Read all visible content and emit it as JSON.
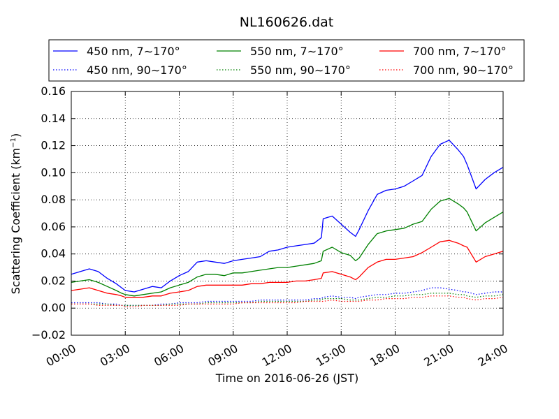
{
  "chart_data": {
    "type": "line",
    "title": "NL160626.dat",
    "xlabel": "Time on 2016-06-26 (JST)",
    "ylabel": "Scattering Coefficient (km",
    "ylabel_sup": "−1",
    "ylabel_end": ")",
    "xlim": [
      0,
      24
    ],
    "ylim": [
      -0.02,
      0.16
    ],
    "x_tick_values": [
      0,
      3,
      6,
      9,
      12,
      15,
      18,
      21,
      24
    ],
    "x_tick_labels": [
      "00:00",
      "03:00",
      "06:00",
      "09:00",
      "12:00",
      "15:00",
      "18:00",
      "21:00",
      "24:00"
    ],
    "y_tick_values": [
      -0.02,
      0.0,
      0.02,
      0.04,
      0.06,
      0.08,
      0.1,
      0.12,
      0.14,
      0.16
    ],
    "y_tick_labels": [
      "−0.02",
      "0.00",
      "0.02",
      "0.04",
      "0.06",
      "0.08",
      "0.10",
      "0.12",
      "0.14",
      "0.16"
    ],
    "grid": true,
    "legend_position": "top (above plot)",
    "x": [
      0,
      0.5,
      1,
      1.5,
      2,
      2.5,
      2.8,
      3,
      3.5,
      4,
      4.5,
      5,
      5.5,
      6,
      6.5,
      7,
      7.5,
      8,
      8.5,
      9,
      9.5,
      10,
      10.5,
      11,
      11.5,
      12,
      12.5,
      13,
      13.5,
      13.9,
      14,
      14.5,
      15,
      15.5,
      15.8,
      16,
      16.5,
      17,
      17.5,
      18,
      18.5,
      19,
      19.5,
      20,
      20.5,
      21,
      21.5,
      21.8,
      22,
      22.5,
      23,
      23.5,
      24
    ],
    "series": [
      {
        "name": "450 nm, 7∼170°",
        "color": "#0000ff",
        "style": "solid",
        "values": [
          0.025,
          0.027,
          0.029,
          0.027,
          0.022,
          0.018,
          0.015,
          0.013,
          0.012,
          0.014,
          0.016,
          0.015,
          0.02,
          0.024,
          0.027,
          0.034,
          0.035,
          0.034,
          0.033,
          0.035,
          0.036,
          0.037,
          0.038,
          0.042,
          0.043,
          0.045,
          0.046,
          0.047,
          0.048,
          0.052,
          0.066,
          0.068,
          0.062,
          0.056,
          0.053,
          0.058,
          0.072,
          0.084,
          0.087,
          0.088,
          0.09,
          0.094,
          0.098,
          0.112,
          0.121,
          0.124,
          0.117,
          0.112,
          0.106,
          0.088,
          0.095,
          0.1,
          0.104
        ]
      },
      {
        "name": "550 nm, 7∼170°",
        "color": "#008000",
        "style": "solid",
        "values": [
          0.019,
          0.02,
          0.021,
          0.019,
          0.016,
          0.013,
          0.011,
          0.01,
          0.009,
          0.01,
          0.011,
          0.012,
          0.015,
          0.017,
          0.019,
          0.023,
          0.025,
          0.025,
          0.024,
          0.026,
          0.026,
          0.027,
          0.028,
          0.029,
          0.03,
          0.03,
          0.031,
          0.032,
          0.033,
          0.035,
          0.042,
          0.045,
          0.041,
          0.039,
          0.035,
          0.037,
          0.047,
          0.055,
          0.057,
          0.058,
          0.059,
          0.062,
          0.064,
          0.073,
          0.079,
          0.081,
          0.077,
          0.074,
          0.071,
          0.057,
          0.063,
          0.067,
          0.071
        ]
      },
      {
        "name": "700 nm, 7∼170°",
        "color": "#ff0000",
        "style": "solid",
        "values": [
          0.013,
          0.014,
          0.015,
          0.013,
          0.011,
          0.01,
          0.009,
          0.008,
          0.008,
          0.008,
          0.009,
          0.009,
          0.011,
          0.012,
          0.013,
          0.016,
          0.017,
          0.017,
          0.017,
          0.017,
          0.017,
          0.018,
          0.018,
          0.019,
          0.019,
          0.019,
          0.02,
          0.02,
          0.021,
          0.022,
          0.026,
          0.027,
          0.025,
          0.023,
          0.021,
          0.023,
          0.03,
          0.034,
          0.036,
          0.036,
          0.037,
          0.038,
          0.041,
          0.045,
          0.049,
          0.05,
          0.048,
          0.046,
          0.045,
          0.034,
          0.038,
          0.04,
          0.042
        ]
      },
      {
        "name": "450 nm, 90∼170°",
        "color": "#0000ff",
        "style": "dotted",
        "values": [
          0.004,
          0.004,
          0.004,
          0.004,
          0.003,
          0.003,
          0.002,
          0.002,
          0.002,
          0.002,
          0.002,
          0.003,
          0.003,
          0.004,
          0.004,
          0.004,
          0.005,
          0.005,
          0.005,
          0.005,
          0.005,
          0.005,
          0.006,
          0.006,
          0.006,
          0.006,
          0.006,
          0.006,
          0.007,
          0.007,
          0.008,
          0.009,
          0.008,
          0.008,
          0.007,
          0.008,
          0.009,
          0.01,
          0.01,
          0.011,
          0.011,
          0.012,
          0.013,
          0.015,
          0.015,
          0.014,
          0.013,
          0.012,
          0.012,
          0.01,
          0.011,
          0.012,
          0.012
        ]
      },
      {
        "name": "550 nm, 90∼170°",
        "color": "#008000",
        "style": "dotted",
        "values": [
          0.003,
          0.003,
          0.003,
          0.003,
          0.003,
          0.002,
          0.002,
          0.002,
          0.002,
          0.002,
          0.002,
          0.002,
          0.003,
          0.003,
          0.003,
          0.003,
          0.004,
          0.004,
          0.004,
          0.004,
          0.004,
          0.004,
          0.005,
          0.005,
          0.005,
          0.005,
          0.005,
          0.005,
          0.006,
          0.006,
          0.007,
          0.007,
          0.007,
          0.006,
          0.006,
          0.006,
          0.007,
          0.008,
          0.008,
          0.009,
          0.009,
          0.01,
          0.01,
          0.011,
          0.011,
          0.011,
          0.01,
          0.01,
          0.009,
          0.008,
          0.009,
          0.009,
          0.01
        ]
      },
      {
        "name": "700 nm, 90∼170°",
        "color": "#ff0000",
        "style": "dotted",
        "values": [
          0.003,
          0.003,
          0.003,
          0.002,
          0.002,
          0.002,
          0.002,
          0.001,
          0.001,
          0.002,
          0.002,
          0.002,
          0.002,
          0.002,
          0.003,
          0.003,
          0.003,
          0.003,
          0.003,
          0.003,
          0.004,
          0.004,
          0.004,
          0.004,
          0.004,
          0.004,
          0.004,
          0.005,
          0.005,
          0.005,
          0.005,
          0.006,
          0.005,
          0.005,
          0.005,
          0.005,
          0.006,
          0.006,
          0.007,
          0.007,
          0.007,
          0.008,
          0.008,
          0.009,
          0.009,
          0.009,
          0.008,
          0.008,
          0.007,
          0.006,
          0.007,
          0.007,
          0.008
        ]
      }
    ]
  }
}
